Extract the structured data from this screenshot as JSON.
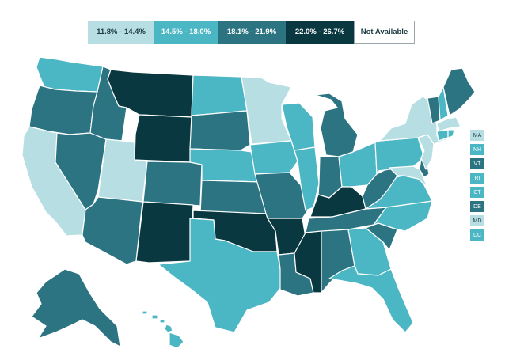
{
  "legend": {
    "items": [
      {
        "label": "11.8% - 14.4%",
        "color": "#b7dfe3"
      },
      {
        "label": "14.5% - 18.0%",
        "color": "#4bb6c4"
      },
      {
        "label": "18.1% - 21.9%",
        "color": "#2c7482"
      },
      {
        "label": "22.0% - 26.7%",
        "color": "#0a3840"
      },
      {
        "label": "Not Available",
        "color": "#ffffff"
      }
    ]
  },
  "small_states": [
    {
      "abbr": "MA",
      "bin": 0
    },
    {
      "abbr": "NH",
      "bin": 1
    },
    {
      "abbr": "VT",
      "bin": 2
    },
    {
      "abbr": "RI",
      "bin": 1
    },
    {
      "abbr": "CT",
      "bin": 1
    },
    {
      "abbr": "DE",
      "bin": 2
    },
    {
      "abbr": "MD",
      "bin": 0
    },
    {
      "abbr": "DC",
      "bin": 1
    }
  ],
  "map_bins": {
    "WA": 1,
    "OR": 2,
    "CA": 0,
    "NV": 2,
    "ID": 2,
    "MT": 3,
    "WY": 3,
    "UT": 0,
    "AZ": 2,
    "CO": 2,
    "NM": 3,
    "ND": 1,
    "SD": 2,
    "NE": 1,
    "KS": 2,
    "OK": 3,
    "TX": 1,
    "MN": 0,
    "IA": 1,
    "MO": 2,
    "AR": 3,
    "LA": 2,
    "WI": 1,
    "IL": 1,
    "MI": 2,
    "IN": 2,
    "OH": 1,
    "KY": 3,
    "TN": 2,
    "MS": 3,
    "AL": 2,
    "GA": 1,
    "FL": 1,
    "SC": 2,
    "NC": 1,
    "VA": 1,
    "WV": 2,
    "PA": 1,
    "NY": 0,
    "NJ": 0,
    "VT": 2,
    "NH": 1,
    "ME": 2,
    "MA": 0,
    "CT": 1,
    "RI": 1,
    "DE": 2,
    "MD": 0,
    "AK": 2,
    "HI": 1
  }
}
